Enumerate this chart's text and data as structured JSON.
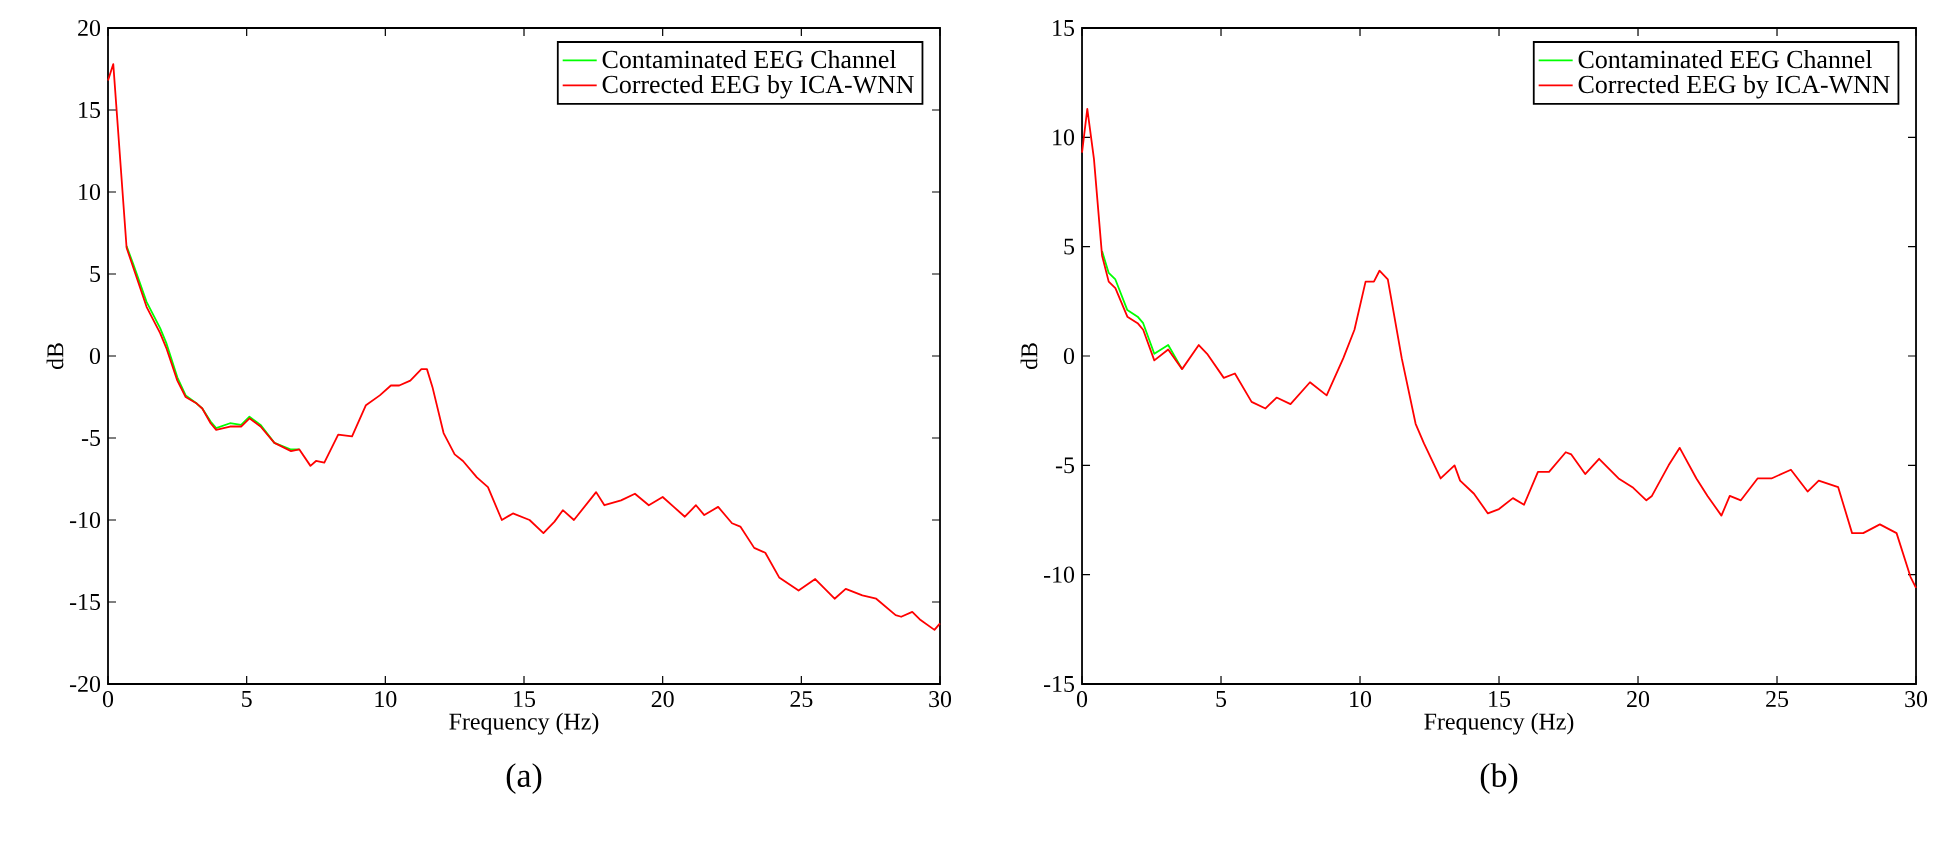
{
  "chart_data": [
    {
      "type": "line",
      "xlabel": "Frequency (Hz)",
      "ylabel": "dB",
      "annotations": [
        "(a)"
      ],
      "xlim": [
        0,
        30
      ],
      "ylim": [
        -20,
        20
      ],
      "xticks": [
        0,
        5,
        10,
        15,
        20,
        25,
        30
      ],
      "yticks": [
        -20,
        -15,
        -10,
        -5,
        0,
        5,
        10,
        15,
        20
      ],
      "grid": false,
      "legend": "top right",
      "marker": "none",
      "line_style": "solid",
      "series": [
        {
          "name": "Contaminated EEG Channel",
          "color": "#00ff00",
          "x": [
            0.67,
            0.91,
            1.39,
            1.88,
            2.1,
            2.5,
            2.8,
            3.2,
            3.4,
            3.7,
            3.9,
            4.4,
            4.8,
            5.1,
            5.5,
            6.0,
            6.6,
            6.9
          ],
          "values": [
            6.7,
            5.6,
            3.3,
            1.7,
            0.8,
            -1.3,
            -2.4,
            -2.9,
            -3.2,
            -4.0,
            -4.4,
            -4.1,
            -4.2,
            -3.7,
            -4.2,
            -5.3,
            -5.7,
            -5.7
          ]
        },
        {
          "name": "Corrected EEG by ICA-WNN",
          "color": "#ff0000",
          "x": [
            0,
            0.19,
            0.67,
            0.91,
            1.39,
            1.88,
            2.1,
            2.5,
            2.8,
            3.2,
            3.4,
            3.7,
            3.9,
            4.4,
            4.8,
            5.1,
            5.5,
            6.0,
            6.6,
            6.9,
            7.3,
            7.5,
            7.8,
            8.3,
            8.8,
            9.3,
            9.8,
            10.2,
            10.5,
            10.9,
            11.3,
            11.5,
            11.7,
            12.1,
            12.5,
            12.8,
            13.3,
            13.7,
            14.2,
            14.6,
            15.2,
            15.7,
            16.1,
            16.4,
            16.8,
            17.6,
            17.9,
            18.5,
            19.0,
            19.5,
            20.0,
            20.4,
            20.8,
            21.2,
            21.5,
            22.0,
            22.5,
            22.8,
            23.3,
            23.7,
            24.2,
            24.9,
            25.5,
            26.2,
            26.6,
            27.2,
            27.7,
            28.4,
            28.6,
            29.0,
            29.3,
            29.8,
            30.0
          ],
          "values": [
            16.8,
            17.8,
            6.6,
            5.4,
            3.0,
            1.4,
            0.5,
            -1.5,
            -2.5,
            -2.9,
            -3.2,
            -4.1,
            -4.5,
            -4.3,
            -4.3,
            -3.8,
            -4.3,
            -5.3,
            -5.8,
            -5.7,
            -6.7,
            -6.4,
            -6.5,
            -4.8,
            -4.9,
            -3.0,
            -2.4,
            -1.8,
            -1.8,
            -1.5,
            -0.8,
            -0.8,
            -1.9,
            -4.7,
            -6.0,
            -6.4,
            -7.4,
            -8.0,
            -10.0,
            -9.6,
            -10.0,
            -10.8,
            -10.1,
            -9.4,
            -10.0,
            -8.3,
            -9.1,
            -8.8,
            -8.4,
            -9.1,
            -8.6,
            -9.2,
            -9.8,
            -9.1,
            -9.7,
            -9.2,
            -10.2,
            -10.4,
            -11.7,
            -12.0,
            -13.5,
            -14.3,
            -13.6,
            -14.8,
            -14.2,
            -14.6,
            -14.8,
            -15.8,
            -15.9,
            -15.6,
            -16.1,
            -16.7,
            -16.3
          ]
        }
      ]
    },
    {
      "type": "line",
      "xlabel": "Frequency (Hz)",
      "ylabel": "dB",
      "annotations": [
        "(b)"
      ],
      "xlim": [
        0,
        30
      ],
      "ylim": [
        -15,
        15
      ],
      "xticks": [
        0,
        5,
        10,
        15,
        20,
        25,
        30
      ],
      "yticks": [
        -15,
        -10,
        -5,
        0,
        5,
        10,
        15
      ],
      "grid": false,
      "legend": "top right",
      "marker": "none",
      "line_style": "solid",
      "series": [
        {
          "name": "Contaminated EEG Channel",
          "color": "#00ff00",
          "x": [
            0.72,
            0.96,
            1.2,
            1.63,
            2.0,
            2.2,
            2.6,
            3.1,
            3.6
          ],
          "values": [
            4.8,
            3.8,
            3.5,
            2.1,
            1.8,
            1.5,
            0.1,
            0.5,
            -0.6
          ]
        },
        {
          "name": "Corrected EEG by ICA-WNN",
          "color": "#ff0000",
          "x": [
            0,
            0.19,
            0.43,
            0.72,
            0.96,
            1.2,
            1.63,
            2.0,
            2.2,
            2.6,
            3.1,
            3.6,
            4.2,
            4.5,
            5.1,
            5.5,
            6.1,
            6.6,
            7.0,
            7.5,
            8.2,
            8.8,
            9.4,
            9.8,
            10.2,
            10.5,
            10.7,
            11.0,
            11.5,
            12.0,
            12.3,
            12.9,
            13.4,
            13.6,
            14.1,
            14.6,
            15.0,
            15.5,
            15.9,
            16.4,
            16.8,
            17.4,
            17.6,
            18.1,
            18.6,
            19.3,
            19.8,
            20.3,
            20.5,
            21.1,
            21.5,
            22.1,
            22.5,
            23.0,
            23.3,
            23.7,
            24.3,
            24.8,
            25.5,
            26.1,
            26.5,
            27.2,
            27.7,
            28.1,
            28.7,
            29.3,
            29.8,
            30.0
          ],
          "values": [
            9.3,
            11.3,
            9.0,
            4.6,
            3.4,
            3.1,
            1.8,
            1.5,
            1.2,
            -0.2,
            0.3,
            -0.6,
            0.5,
            0.1,
            -1.0,
            -0.8,
            -2.1,
            -2.4,
            -1.9,
            -2.2,
            -1.2,
            -1.8,
            -0.1,
            1.2,
            3.4,
            3.4,
            3.9,
            3.5,
            -0.1,
            -3.1,
            -4.0,
            -5.6,
            -5.0,
            -5.7,
            -6.3,
            -7.2,
            -7.0,
            -6.5,
            -6.8,
            -5.3,
            -5.3,
            -4.4,
            -4.5,
            -5.4,
            -4.7,
            -5.6,
            -6.0,
            -6.6,
            -6.4,
            -5.0,
            -4.2,
            -5.6,
            -6.4,
            -7.3,
            -6.4,
            -6.6,
            -5.6,
            -5.6,
            -5.2,
            -6.2,
            -5.7,
            -6.0,
            -8.1,
            -8.1,
            -7.7,
            -8.1,
            -10.1,
            -10.6
          ]
        }
      ]
    }
  ]
}
